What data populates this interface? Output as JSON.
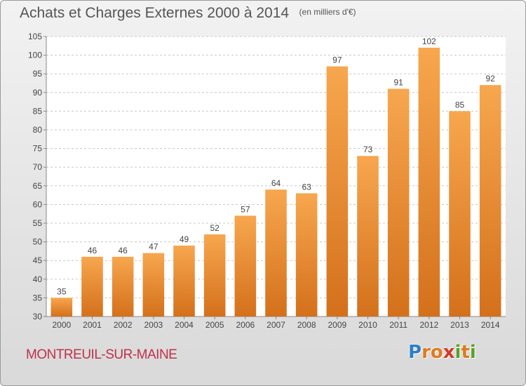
{
  "header": {
    "title": "Achats et Charges Externes 2000 à 2014",
    "unit": "(en milliers d'€)"
  },
  "footer": {
    "place": "MONTREUIL-SUR-MAINE",
    "logo_text": "Proxiti",
    "logo_letters": [
      {
        "ch": "P",
        "color": "#2f7fc8"
      },
      {
        "ch": "r",
        "color": "#e07a1f"
      },
      {
        "ch": "o",
        "color": "#e07a1f"
      },
      {
        "ch": "x",
        "color": "#d03a2a"
      },
      {
        "ch": "i",
        "color": "#5aa02c"
      },
      {
        "ch": "t",
        "color": "#e07a1f"
      },
      {
        "ch": "i",
        "color": "#5aa02c"
      }
    ]
  },
  "colors": {
    "bar_light": "#f7a74f",
    "bar_dark": "#d4701b",
    "grid": "#c8c8c8",
    "text": "#444444"
  },
  "chart_data": {
    "type": "bar",
    "title": "Achats et Charges Externes 2000 à 2014",
    "subtitle": "(en milliers d'€)",
    "categories": [
      "2000",
      "2001",
      "2002",
      "2003",
      "2004",
      "2005",
      "2006",
      "2007",
      "2008",
      "2009",
      "2010",
      "2011",
      "2012",
      "2013",
      "2014"
    ],
    "values": [
      35,
      46,
      46,
      47,
      49,
      52,
      57,
      64,
      63,
      97,
      73,
      91,
      102,
      85,
      92
    ],
    "ylim": [
      30,
      105
    ],
    "yticks": [
      30,
      35,
      40,
      45,
      50,
      55,
      60,
      65,
      70,
      75,
      80,
      85,
      90,
      95,
      100,
      105
    ],
    "grid": true,
    "legend": "none"
  }
}
